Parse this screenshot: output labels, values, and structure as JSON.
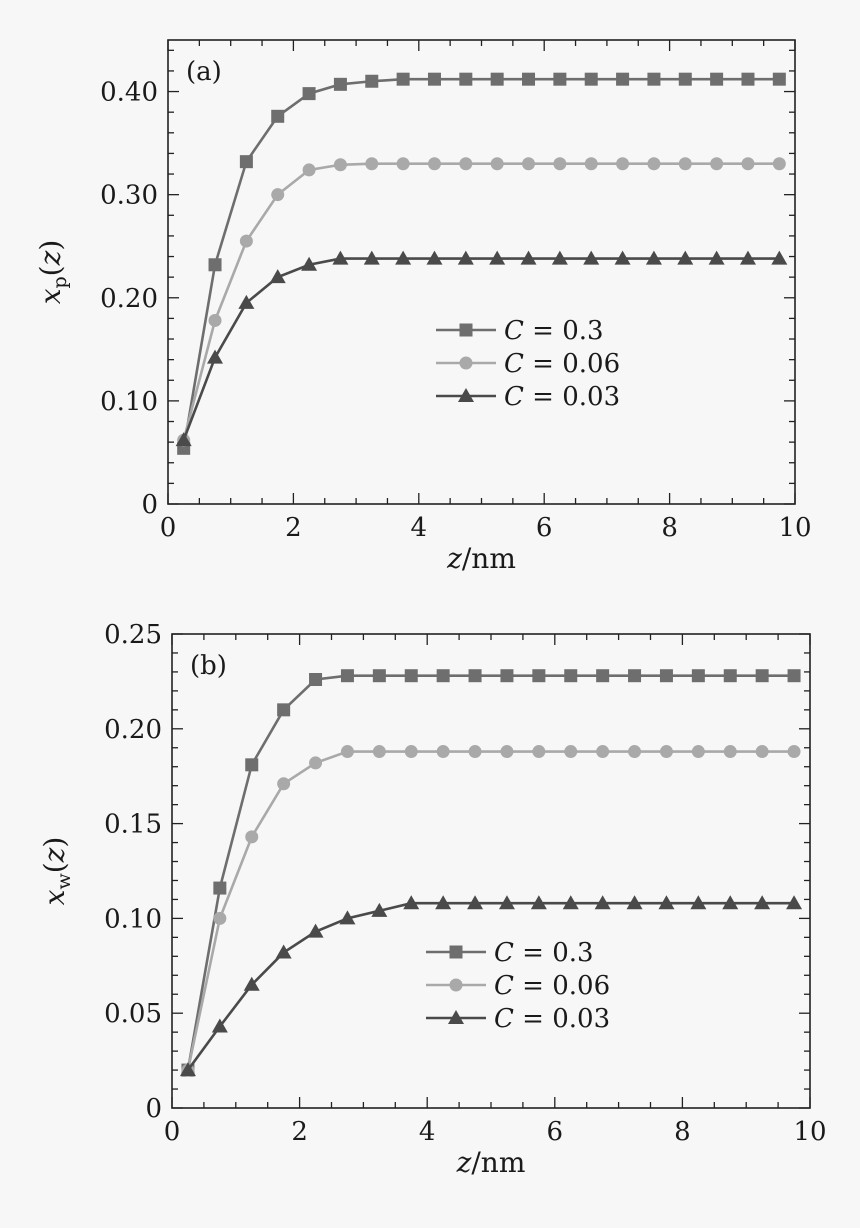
{
  "chart_data": [
    {
      "type": "line",
      "panel_label": "(a)",
      "xlabel": "z/nm",
      "ylabel": "xp(z)",
      "xlim": [
        0,
        10
      ],
      "ylim": [
        0,
        0.45
      ],
      "xticks": [
        0,
        2,
        4,
        6,
        8,
        10
      ],
      "xtick_labels": [
        "0",
        "2",
        "4",
        "6",
        "8",
        "10"
      ],
      "yticks": [
        0,
        0.1,
        0.2,
        0.3,
        0.4
      ],
      "ytick_labels": [
        "0",
        "0.10",
        "0.20",
        "0.30",
        "0.40"
      ],
      "legend_position": "center-right",
      "grid": false,
      "x": [
        0.25,
        0.75,
        1.25,
        1.75,
        2.25,
        2.75,
        3.25,
        3.75,
        4.25,
        4.75,
        5.25,
        5.75,
        6.25,
        6.75,
        7.25,
        7.75,
        8.25,
        8.75,
        9.25,
        9.75
      ],
      "series": [
        {
          "name": "C = 0.3",
          "marker": "square",
          "color": "#6e6e6e",
          "values": [
            0.054,
            0.232,
            0.332,
            0.376,
            0.398,
            0.407,
            0.41,
            0.412,
            0.412,
            0.412,
            0.412,
            0.412,
            0.412,
            0.412,
            0.412,
            0.412,
            0.412,
            0.412,
            0.412,
            0.412
          ]
        },
        {
          "name": "C = 0.06",
          "marker": "circle",
          "color": "#a9a9a9",
          "values": [
            0.062,
            0.178,
            0.255,
            0.3,
            0.324,
            0.329,
            0.33,
            0.33,
            0.33,
            0.33,
            0.33,
            0.33,
            0.33,
            0.33,
            0.33,
            0.33,
            0.33,
            0.33,
            0.33,
            0.33
          ]
        },
        {
          "name": "C = 0.03",
          "marker": "triangle",
          "color": "#4a4a4a",
          "values": [
            0.062,
            0.142,
            0.195,
            0.22,
            0.232,
            0.238,
            0.238,
            0.238,
            0.238,
            0.238,
            0.238,
            0.238,
            0.238,
            0.238,
            0.238,
            0.238,
            0.238,
            0.238,
            0.238,
            0.238
          ]
        }
      ]
    },
    {
      "type": "line",
      "panel_label": "(b)",
      "xlabel": "z/nm",
      "ylabel": "xw(z)",
      "xlim": [
        0,
        10
      ],
      "ylim": [
        0,
        0.25
      ],
      "xticks": [
        0,
        2,
        4,
        6,
        8,
        10
      ],
      "xtick_labels": [
        "0",
        "2",
        "4",
        "6",
        "8",
        "10"
      ],
      "yticks": [
        0,
        0.05,
        0.1,
        0.15,
        0.2,
        0.25
      ],
      "ytick_labels": [
        "0",
        "0.05",
        "0.10",
        "0.15",
        "0.20",
        "0.25"
      ],
      "legend_position": "center-right",
      "grid": false,
      "x": [
        0.25,
        0.75,
        1.25,
        1.75,
        2.25,
        2.75,
        3.25,
        3.75,
        4.25,
        4.75,
        5.25,
        5.75,
        6.25,
        6.75,
        7.25,
        7.75,
        8.25,
        8.75,
        9.25,
        9.75
      ],
      "series": [
        {
          "name": "C = 0.3",
          "marker": "square",
          "color": "#6e6e6e",
          "values": [
            0.02,
            0.116,
            0.181,
            0.21,
            0.226,
            0.228,
            0.228,
            0.228,
            0.228,
            0.228,
            0.228,
            0.228,
            0.228,
            0.228,
            0.228,
            0.228,
            0.228,
            0.228,
            0.228,
            0.228
          ]
        },
        {
          "name": "C = 0.06",
          "marker": "circle",
          "color": "#a9a9a9",
          "values": [
            0.02,
            0.1,
            0.143,
            0.171,
            0.182,
            0.188,
            0.188,
            0.188,
            0.188,
            0.188,
            0.188,
            0.188,
            0.188,
            0.188,
            0.188,
            0.188,
            0.188,
            0.188,
            0.188,
            0.188
          ]
        },
        {
          "name": "C = 0.03",
          "marker": "triangle",
          "color": "#4a4a4a",
          "values": [
            0.02,
            0.043,
            0.065,
            0.082,
            0.093,
            0.1,
            0.104,
            0.108,
            0.108,
            0.108,
            0.108,
            0.108,
            0.108,
            0.108,
            0.108,
            0.108,
            0.108,
            0.108,
            0.108,
            0.108
          ]
        }
      ]
    }
  ]
}
